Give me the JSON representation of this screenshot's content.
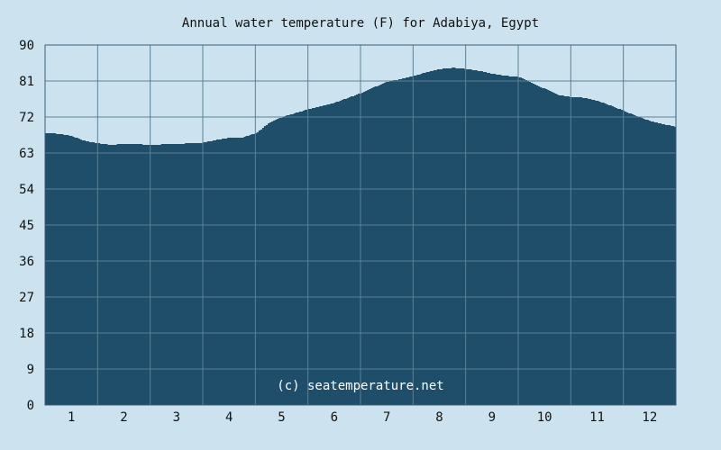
{
  "chart_data": {
    "type": "area",
    "title": "Annual water temperature (F) for Adabiya, Egypt",
    "xlabel": "",
    "ylabel": "",
    "ylim": [
      0,
      90
    ],
    "xlim": [
      0.5,
      12.5
    ],
    "y_ticks": [
      "0",
      "9",
      "18",
      "27",
      "36",
      "45",
      "54",
      "63",
      "72",
      "81",
      "90"
    ],
    "x_ticks": [
      "1",
      "2",
      "3",
      "4",
      "5",
      "6",
      "7",
      "8",
      "9",
      "10",
      "11",
      "12"
    ],
    "grid": true,
    "annotation": "(c) seatemperature.net",
    "colors": {
      "background": "#cce3ef",
      "area": "#1f4e6b",
      "grid": "#5b8096",
      "axis": "#3c5f78"
    },
    "x": [
      0.5,
      0.75,
      1.0,
      1.25,
      1.5,
      1.75,
      2.0,
      2.25,
      2.5,
      2.75,
      3.0,
      3.25,
      3.5,
      3.75,
      4.0,
      4.25,
      4.5,
      4.75,
      5.0,
      5.25,
      5.5,
      5.75,
      6.0,
      6.25,
      6.5,
      6.75,
      7.0,
      7.25,
      7.5,
      7.75,
      8.0,
      8.25,
      8.5,
      8.75,
      9.0,
      9.25,
      9.5,
      9.75,
      10.0,
      10.25,
      10.5,
      10.75,
      11.0,
      11.25,
      11.5,
      11.75,
      12.0,
      12.25,
      12.5
    ],
    "values": [
      68.0,
      67.8,
      67.2,
      66.0,
      65.4,
      65.0,
      65.3,
      65.2,
      65.0,
      65.2,
      65.3,
      65.4,
      65.6,
      66.3,
      66.8,
      66.9,
      68.0,
      70.5,
      72.0,
      73.0,
      74.0,
      74.8,
      75.6,
      76.8,
      78.0,
      79.5,
      80.8,
      81.5,
      82.3,
      83.2,
      84.0,
      84.3,
      84.0,
      83.5,
      82.8,
      82.3,
      82.0,
      80.5,
      79.0,
      77.5,
      77.0,
      76.8,
      76.0,
      74.8,
      73.5,
      72.2,
      71.0,
      70.2,
      69.5
    ]
  }
}
